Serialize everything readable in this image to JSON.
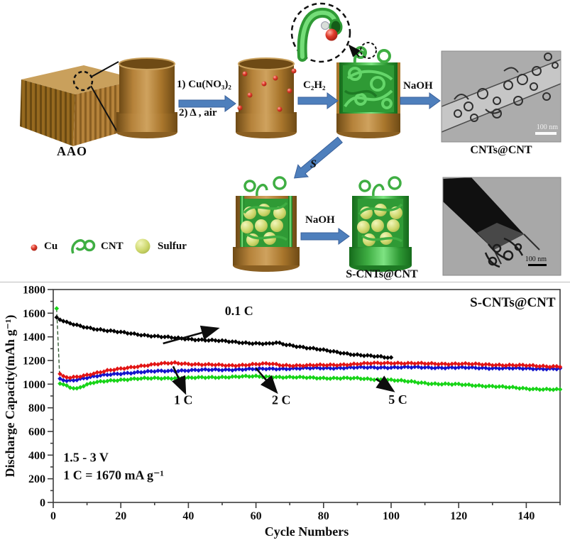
{
  "scheme": {
    "aao_label": "AAO",
    "step1_line1": "1) Cu(NO₃)₂",
    "step1_line2": "2) Δ , air",
    "step2_label": "C₂H₂",
    "step3_label": "NaOH",
    "step4_label": "S",
    "step5_label": "NaOH",
    "tem_top_caption": "CNTs@CNT",
    "tem_top_scalebar": "100 nm",
    "tem_bottom_scalebar": "100 nm",
    "product_label": "S-CNTs@CNT",
    "legend": {
      "cu": "Cu",
      "cnt": "CNT",
      "sulfur": "Sulfur"
    }
  },
  "chart_data": {
    "type": "line-scatter",
    "title": "",
    "xlabel": "Cycle Numbers",
    "ylabel": "Discharge Capacity(mAh g⁻¹)",
    "inner_label": "S-CNTs@CNT",
    "xlim": [
      0,
      150
    ],
    "ylim": [
      0,
      1800
    ],
    "x_major_step": 20,
    "x_minor_step": 10,
    "y_major_step": 200,
    "y_minor_step": 100,
    "x_major_ticks": [
      0,
      20,
      40,
      60,
      80,
      100,
      120,
      140
    ],
    "y_major_ticks": [
      0,
      200,
      400,
      600,
      800,
      1000,
      1200,
      1400,
      1600,
      1800
    ],
    "grid": false,
    "legend_position": "none",
    "notes": [
      {
        "text": "1.5 - 3 V",
        "at": [
          3,
          345
        ]
      },
      {
        "text": "1 C = 1670 mA g⁻¹",
        "at": [
          3,
          195
        ]
      }
    ],
    "annotations": [
      {
        "label": "0.1 C",
        "label_at": [
          55,
          1585
        ],
        "arrow_from": [
          32.5,
          1344
        ],
        "arrow_to": [
          48.5,
          1470
        ]
      },
      {
        "label": "1 C",
        "label_at": [
          38.5,
          830
        ],
        "arrow_from": [
          35.5,
          1150
        ],
        "arrow_to": [
          39,
          930
        ]
      },
      {
        "label": "2 C",
        "label_at": [
          67.5,
          830
        ],
        "arrow_from": [
          60,
          1135
        ],
        "arrow_to": [
          66,
          935
        ]
      },
      {
        "label": "5 C",
        "label_at": [
          102,
          835
        ],
        "arrow_from": [
          95.5,
          1045
        ],
        "arrow_to": [
          100.5,
          945
        ]
      }
    ],
    "series": [
      {
        "name": "0.1 C",
        "color": "#000000",
        "marker": "diamond",
        "points": [
          [
            1,
            1560
          ],
          [
            2,
            1545
          ],
          [
            4,
            1520
          ],
          [
            6,
            1505
          ],
          [
            8,
            1492
          ],
          [
            10,
            1480
          ],
          [
            13,
            1465
          ],
          [
            16,
            1452
          ],
          [
            20,
            1438
          ],
          [
            24,
            1425
          ],
          [
            28,
            1412
          ],
          [
            32,
            1400
          ],
          [
            36,
            1390
          ],
          [
            40,
            1382
          ],
          [
            44,
            1375
          ],
          [
            48,
            1368
          ],
          [
            52,
            1360
          ],
          [
            56,
            1352
          ],
          [
            60,
            1345
          ],
          [
            64,
            1340
          ],
          [
            66,
            1350
          ],
          [
            68,
            1338
          ],
          [
            72,
            1322
          ],
          [
            76,
            1305
          ],
          [
            80,
            1287
          ],
          [
            84,
            1270
          ],
          [
            88,
            1255
          ],
          [
            92,
            1243
          ],
          [
            96,
            1232
          ],
          [
            100,
            1222
          ]
        ]
      },
      {
        "name": "1 C",
        "color": "#e21414",
        "marker": "diamond",
        "points": [
          [
            2,
            1085
          ],
          [
            3,
            1062
          ],
          [
            5,
            1055
          ],
          [
            8,
            1068
          ],
          [
            12,
            1090
          ],
          [
            16,
            1112
          ],
          [
            20,
            1130
          ],
          [
            24,
            1148
          ],
          [
            28,
            1160
          ],
          [
            32,
            1172
          ],
          [
            36,
            1180
          ],
          [
            40,
            1172
          ],
          [
            44,
            1165
          ],
          [
            48,
            1162
          ],
          [
            52,
            1158
          ],
          [
            56,
            1162
          ],
          [
            60,
            1168
          ],
          [
            64,
            1172
          ],
          [
            68,
            1160
          ],
          [
            72,
            1158
          ],
          [
            76,
            1158
          ],
          [
            80,
            1160
          ],
          [
            85,
            1165
          ],
          [
            90,
            1170
          ],
          [
            95,
            1176
          ],
          [
            100,
            1180
          ],
          [
            105,
            1176
          ],
          [
            110,
            1173
          ],
          [
            115,
            1172
          ],
          [
            120,
            1172
          ],
          [
            125,
            1168
          ],
          [
            130,
            1165
          ],
          [
            135,
            1160
          ],
          [
            140,
            1157
          ],
          [
            145,
            1152
          ],
          [
            150,
            1150
          ]
        ]
      },
      {
        "name": "2 C",
        "color": "#1414cc",
        "marker": "diamond",
        "points": [
          [
            2,
            1042
          ],
          [
            4,
            1030
          ],
          [
            6,
            1035
          ],
          [
            10,
            1055
          ],
          [
            14,
            1072
          ],
          [
            18,
            1085
          ],
          [
            22,
            1095
          ],
          [
            26,
            1102
          ],
          [
            30,
            1108
          ],
          [
            35,
            1113
          ],
          [
            40,
            1117
          ],
          [
            45,
            1120
          ],
          [
            50,
            1122
          ],
          [
            55,
            1125
          ],
          [
            60,
            1127
          ],
          [
            65,
            1130
          ],
          [
            70,
            1132
          ],
          [
            75,
            1134
          ],
          [
            80,
            1136
          ],
          [
            85,
            1138
          ],
          [
            90,
            1140
          ],
          [
            95,
            1141
          ],
          [
            100,
            1142
          ],
          [
            105,
            1142
          ],
          [
            110,
            1141
          ],
          [
            115,
            1140
          ],
          [
            120,
            1139
          ],
          [
            125,
            1138
          ],
          [
            130,
            1136
          ],
          [
            135,
            1134
          ],
          [
            140,
            1132
          ],
          [
            145,
            1131
          ],
          [
            150,
            1130
          ]
        ]
      },
      {
        "name": "5 C",
        "color": "#17d417",
        "marker": "diamond",
        "first_drop_dashed": true,
        "points": [
          [
            1,
            1640
          ],
          [
            2,
            1010
          ],
          [
            3,
            1000
          ],
          [
            5,
            975
          ],
          [
            7,
            962
          ],
          [
            9,
            985
          ],
          [
            12,
            1012
          ],
          [
            16,
            1028
          ],
          [
            20,
            1038
          ],
          [
            25,
            1045
          ],
          [
            30,
            1050
          ],
          [
            35,
            1052
          ],
          [
            40,
            1052
          ],
          [
            45,
            1056
          ],
          [
            50,
            1060
          ],
          [
            55,
            1063
          ],
          [
            60,
            1065
          ],
          [
            65,
            1062
          ],
          [
            70,
            1058
          ],
          [
            75,
            1055
          ],
          [
            80,
            1052
          ],
          [
            85,
            1050
          ],
          [
            90,
            1048
          ],
          [
            95,
            1042
          ],
          [
            100,
            1035
          ],
          [
            104,
            1025
          ],
          [
            108,
            1015
          ],
          [
            112,
            1005
          ],
          [
            116,
            1000
          ],
          [
            120,
            997
          ],
          [
            125,
            990
          ],
          [
            130,
            982
          ],
          [
            135,
            972
          ],
          [
            140,
            963
          ],
          [
            145,
            957
          ],
          [
            150,
            952
          ]
        ]
      }
    ]
  }
}
